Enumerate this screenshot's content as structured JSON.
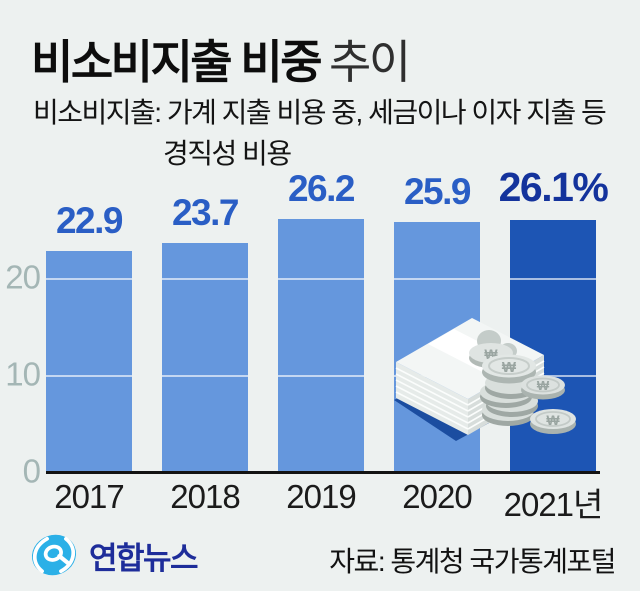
{
  "title": {
    "main": "비소비지출 비중",
    "sub": "추이"
  },
  "subtitle": {
    "line1": "비소비지출: 가계 지출 비용 중, 세금이나 이자 지출 등",
    "line2": "경직성 비용"
  },
  "chart_data": {
    "type": "bar",
    "title": "비소비지출 비중 추이",
    "categories": [
      "2017",
      "2018",
      "2019",
      "2020",
      "2021년"
    ],
    "values": [
      22.9,
      23.7,
      26.2,
      25.9,
      26.1
    ],
    "value_labels": [
      "22.9",
      "23.7",
      "26.2",
      "25.9",
      "26.1%"
    ],
    "unit": "%",
    "xlabel": "",
    "ylabel": "",
    "ylim": [
      0,
      27
    ],
    "yticks": [
      0,
      10,
      20
    ],
    "grid": true,
    "legend": false,
    "bar_color": "#6597dd",
    "highlight_color": "#1d55b4",
    "highlight_index": 4,
    "value_label_color": "#2a5ec5",
    "highlight_label_color": "#14339c"
  },
  "illustration": {
    "name": "banknote-stack-and-won-coins",
    "won_symbol": "₩"
  },
  "footer": {
    "logo_text": "연합뉴스",
    "source": "자료: 통계청 국가통계포털"
  },
  "colors": {
    "background": "#edf1f0",
    "axis_text": "#a4b6b5",
    "baseline": "#131313",
    "gridline": "rgba(255,255,255,0.62)",
    "logo_blue": "#2bb0e7",
    "logo_navy": "#1e2d9a"
  }
}
